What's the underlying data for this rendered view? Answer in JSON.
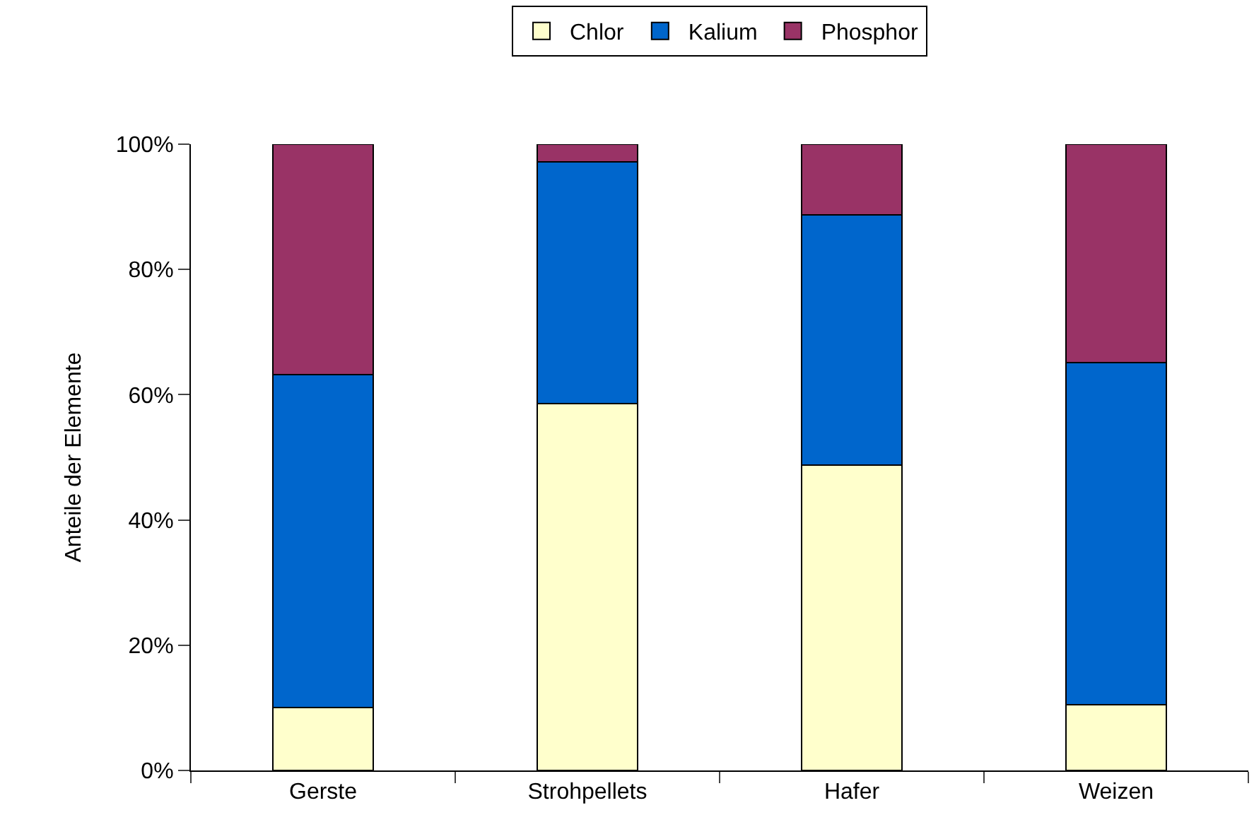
{
  "chart_data": {
    "type": "bar",
    "stacked": true,
    "ylabel": "Anteile der Elemente",
    "categories": [
      "Gerste",
      "Strohpellets",
      "Hafer",
      "Weizen"
    ],
    "series": [
      {
        "name": "Chlor",
        "color": "#ffffcc",
        "values": [
          10,
          58.6,
          48.8,
          10.5
        ]
      },
      {
        "name": "Kalium",
        "color": "#0066cc",
        "values": [
          53.2,
          38.6,
          39.9,
          54.6
        ]
      },
      {
        "name": "Phosphor",
        "color": "#993366",
        "values": [
          36.8,
          2.8,
          11.3,
          34.9
        ]
      }
    ],
    "ylim": [
      0,
      100
    ],
    "yticks": [
      {
        "value": 0,
        "label": "0%"
      },
      {
        "value": 20,
        "label": "20%"
      },
      {
        "value": 40,
        "label": "40%"
      },
      {
        "value": 60,
        "label": "60%"
      },
      {
        "value": 80,
        "label": "80%"
      },
      {
        "value": 100,
        "label": "100%"
      }
    ],
    "grid": false,
    "legend": "top"
  }
}
